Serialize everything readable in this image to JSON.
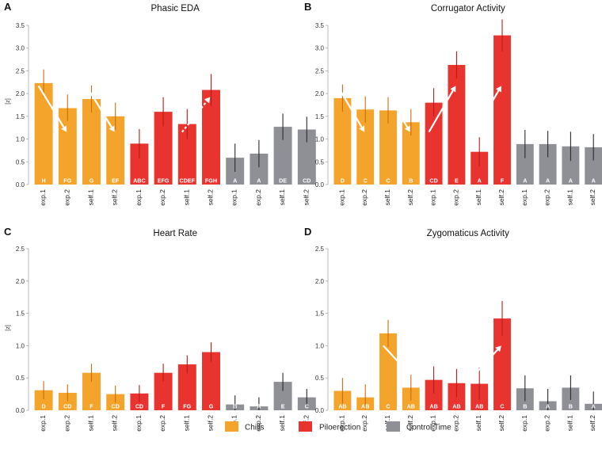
{
  "chart_data": [
    {
      "panel_letter": "A",
      "type": "bar",
      "title": "Phasic EDA",
      "ylabel": "[z]",
      "ylim": [
        0,
        3.5
      ],
      "yticks": [
        "0.0",
        "0.5",
        "1.0",
        "1.5",
        "2.0",
        "2.5",
        "3.0",
        "3.5"
      ],
      "categories": [
        "exp.1",
        "exp.2",
        "self.1",
        "self.2",
        "exp.1",
        "exp.2",
        "self.1",
        "self.2",
        "exp.1",
        "exp.2",
        "self.1",
        "self.2"
      ],
      "groups": [
        "Chills",
        "Chills",
        "Chills",
        "Chills",
        "Piloerection",
        "Piloerection",
        "Piloerection",
        "Piloerection",
        "Control Time",
        "Control Time",
        "Control Time",
        "Control Time"
      ],
      "values": [
        2.23,
        1.68,
        1.88,
        1.5,
        0.9,
        1.6,
        1.33,
        2.08,
        0.59,
        0.68,
        1.27,
        1.21
      ],
      "err_low": [
        1.93,
        1.4,
        1.58,
        1.2,
        0.58,
        1.28,
        1.0,
        1.73,
        0.28,
        0.38,
        0.98,
        0.93
      ],
      "err_high": [
        2.53,
        1.98,
        2.18,
        1.8,
        1.22,
        1.92,
        1.66,
        2.43,
        0.9,
        0.98,
        1.56,
        1.49
      ],
      "letters": [
        "H",
        "FG",
        "G",
        "EF",
        "ABC",
        "EFG",
        "CDEF",
        "FGH",
        "A",
        "A",
        "DE",
        "CD"
      ],
      "arrows": [
        {
          "from": 0,
          "to": 1,
          "from_value": 0.62,
          "to_value": 0.33,
          "style": "solid"
        },
        {
          "from": 2,
          "to": 3,
          "from_value": 0.62,
          "to_value": 0.33,
          "style": "solid"
        },
        {
          "from": 4,
          "to": 5,
          "from_value": 0.33,
          "to_value": 0.62,
          "style": "solid"
        },
        {
          "from": 6,
          "to": 7,
          "from_value": 0.33,
          "to_value": 0.55,
          "style": "dashed"
        }
      ]
    },
    {
      "panel_letter": "B",
      "type": "bar",
      "title": "Corrugator Activity",
      "ylabel": "",
      "ylim": [
        0,
        3.5
      ],
      "yticks": [
        "0.0",
        "0.5",
        "1.0",
        "1.5",
        "2.0",
        "2.5",
        "3.0",
        "3.5"
      ],
      "categories": [
        "exp.1",
        "exp.2",
        "self.1",
        "self.2",
        "exp.1",
        "exp.2",
        "self.1",
        "self.2",
        "exp.1",
        "exp.2",
        "self.1",
        "self.2"
      ],
      "groups": [
        "Chills",
        "Chills",
        "Chills",
        "Chills",
        "Piloerection",
        "Piloerection",
        "Piloerection",
        "Piloerection",
        "Control Time",
        "Control Time",
        "Control Time",
        "Control Time"
      ],
      "values": [
        1.9,
        1.65,
        1.63,
        1.37,
        1.8,
        2.63,
        0.72,
        3.28,
        0.89,
        0.89,
        0.84,
        0.82
      ],
      "err_low": [
        1.6,
        1.36,
        1.34,
        1.08,
        1.5,
        2.33,
        0.4,
        2.93,
        0.58,
        0.6,
        0.52,
        0.53
      ],
      "err_high": [
        2.2,
        1.94,
        1.92,
        1.66,
        2.12,
        2.93,
        1.04,
        3.63,
        1.2,
        1.18,
        1.16,
        1.11
      ],
      "letters": [
        "D",
        "C",
        "C",
        "B",
        "CD",
        "E",
        "A",
        "F",
        "A",
        "A",
        "A",
        "A"
      ],
      "arrows": [
        {
          "from": 0,
          "to": 1,
          "from_value": 0.62,
          "to_value": 0.33,
          "style": "solid"
        },
        {
          "from": 2,
          "to": 3,
          "from_value": 0.62,
          "to_value": 0.33,
          "style": "solid"
        },
        {
          "from": 4,
          "to": 5,
          "from_value": 0.33,
          "to_value": 0.62,
          "style": "solid"
        },
        {
          "from": 6,
          "to": 7,
          "from_value": 0.33,
          "to_value": 0.62,
          "style": "solid"
        }
      ]
    },
    {
      "panel_letter": "C",
      "type": "bar",
      "title": "Heart Rate",
      "ylabel": "[z]",
      "ylim": [
        0,
        2.5
      ],
      "yticks": [
        "0.0",
        "0.5",
        "1.0",
        "1.5",
        "2.0",
        "2.5"
      ],
      "categories": [
        "exp.1",
        "exp.2",
        "self.1",
        "self.2",
        "exp.1",
        "exp.2",
        "self.1",
        "self.2",
        "exp.1",
        "exp.2",
        "self.1",
        "self.2"
      ],
      "groups": [
        "Chills",
        "Chills",
        "Chills",
        "Chills",
        "Piloerection",
        "Piloerection",
        "Piloerection",
        "Piloerection",
        "Control Time",
        "Control Time",
        "Control Time",
        "Control Time"
      ],
      "values": [
        0.31,
        0.27,
        0.58,
        0.25,
        0.26,
        0.58,
        0.71,
        0.9,
        0.09,
        0.06,
        0.44,
        0.2
      ],
      "err_low": [
        0.17,
        0.14,
        0.44,
        0.12,
        0.13,
        0.45,
        0.57,
        0.75,
        0.0,
        0.0,
        0.3,
        0.07
      ],
      "err_high": [
        0.45,
        0.4,
        0.72,
        0.38,
        0.39,
        0.72,
        0.85,
        1.05,
        0.23,
        0.2,
        0.58,
        0.33
      ],
      "letters": [
        "D",
        "CD",
        "F",
        "CD",
        "CD",
        "F",
        "FG",
        "G",
        "B",
        "A",
        "E",
        "C"
      ],
      "arrows": [
        {
          "from": 2,
          "to": 3,
          "from_value": 0.4,
          "to_value": 0.24,
          "style": "solid"
        },
        {
          "from": 4,
          "to": 5,
          "from_value": 0.22,
          "to_value": 0.4,
          "style": "solid"
        }
      ]
    },
    {
      "panel_letter": "D",
      "type": "bar",
      "title": "Zygomaticus Activity",
      "ylabel": "",
      "ylim": [
        0,
        2.5
      ],
      "yticks": [
        "0.0",
        "0.5",
        "1.0",
        "1.5",
        "2.0",
        "2.5"
      ],
      "categories": [
        "exp.1",
        "exp.2",
        "self.1",
        "self.2",
        "exp.1",
        "exp.2",
        "self.1",
        "self.2",
        "exp.1",
        "exp.2",
        "self.1",
        "self.2"
      ],
      "groups": [
        "Chills",
        "Chills",
        "Chills",
        "Chills",
        "Piloerection",
        "Piloerection",
        "Piloerection",
        "Piloerection",
        "Control Time",
        "Control Time",
        "Control Time",
        "Control Time"
      ],
      "values": [
        0.3,
        0.2,
        1.19,
        0.35,
        0.47,
        0.42,
        0.41,
        1.42,
        0.34,
        0.14,
        0.35,
        0.1
      ],
      "err_low": [
        0.1,
        0.01,
        0.98,
        0.15,
        0.26,
        0.2,
        0.16,
        1.15,
        0.14,
        0.0,
        0.16,
        0.0
      ],
      "err_high": [
        0.5,
        0.4,
        1.4,
        0.55,
        0.68,
        0.64,
        0.66,
        1.69,
        0.54,
        0.33,
        0.54,
        0.29
      ],
      "letters": [
        "AB",
        "AB",
        "C",
        "AB",
        "AB",
        "AB",
        "AB",
        "C",
        "B",
        "A",
        "B",
        "A"
      ],
      "arrows": [
        {
          "from": 2,
          "to": 3,
          "from_value": 0.4,
          "to_value": 0.22,
          "style": "solid"
        },
        {
          "from": 6,
          "to": 7,
          "from_value": 0.22,
          "to_value": 0.4,
          "style": "solid"
        }
      ]
    }
  ],
  "legend": {
    "items": [
      {
        "label": "Chills",
        "color": "#f5a42b"
      },
      {
        "label": "Piloerection",
        "color": "#e8332f"
      },
      {
        "label": "Control Time",
        "color": "#8e9096"
      }
    ]
  },
  "colors": {
    "Chills": "#f5a42b",
    "Piloerection": "#e8332f",
    "Control Time": "#8e9096",
    "errorbar_Chills": "#c86d0f",
    "errorbar_Piloerection": "#b31c18",
    "errorbar_Control Time": "#2a2a2a",
    "axis": "#aaaaaa",
    "text": "#222222"
  }
}
